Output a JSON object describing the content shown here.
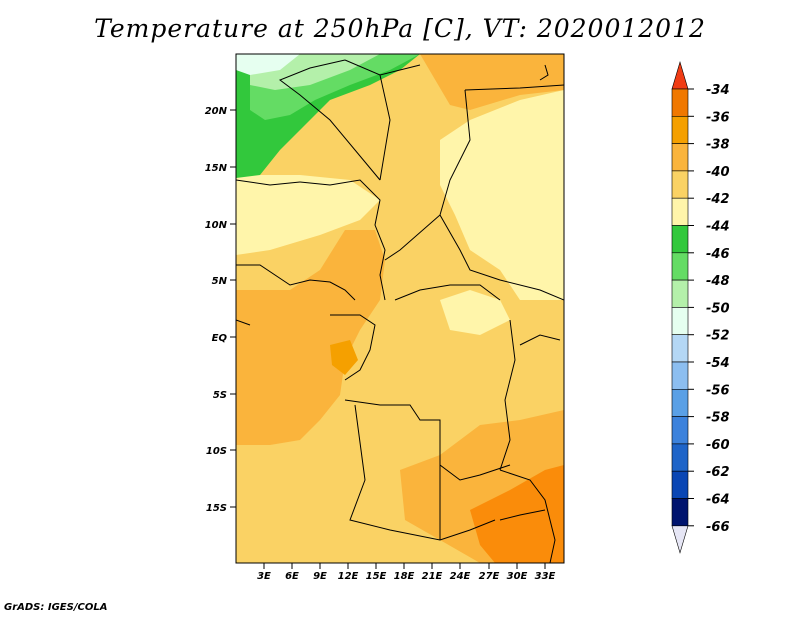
{
  "title": "Temperature at 250hPa [C], VT: 2020012012",
  "footer": "GrADS: IGES/COLA",
  "lat_labels": [
    "20N",
    "15N",
    "10N",
    "5N",
    "EQ",
    "5S",
    "10S",
    "15S"
  ],
  "lon_labels": [
    "3E",
    "6E",
    "9E",
    "12E",
    "15E",
    "18E",
    "21E",
    "24E",
    "27E",
    "30E",
    "33E"
  ],
  "colorbar": {
    "levels": [
      "-34",
      "-36",
      "-38",
      "-40",
      "-42",
      "-44",
      "-46",
      "-48",
      "-50",
      "-52",
      "-54",
      "-56",
      "-58",
      "-60",
      "-62",
      "-64",
      "-66"
    ],
    "colors": [
      "#f03c14",
      "#f07800",
      "#f5a000",
      "#fab43c",
      "#fad264",
      "#fff5aa",
      "#32c83c",
      "#64dc64",
      "#b4f0aa",
      "#e6fff0",
      "#b4d7f5",
      "#8cbef0",
      "#5aa0e6",
      "#3c82dc",
      "#1e64c8",
      "#0a46b4",
      "#00146e",
      "#e6e6f5"
    ]
  },
  "colors": {
    "orange_dark": "#fa8c0a",
    "orange": "#fab43c",
    "yellow": "#fad264",
    "pale": "#fff5aa",
    "green": "#32c83c",
    "light_green": "#64dc64",
    "pale_green": "#b4f0aa",
    "cyan_pale": "#e6fff0"
  }
}
